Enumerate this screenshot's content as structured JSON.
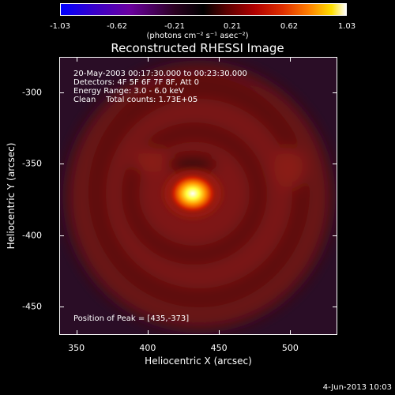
{
  "colorbar": {
    "ticks": [
      "-1.03",
      "-0.62",
      "-0.21",
      "0.21",
      "0.62",
      "1.03"
    ],
    "unit": "(photons cm⁻² s⁻¹ asec⁻²)"
  },
  "chart_data": {
    "type": "heatmap",
    "title": "Reconstructed RHESSI Image",
    "xlabel": "Heliocentric X (arcsec)",
    "ylabel": "Heliocentric Y (arcsec)",
    "xlim": [
      338,
      533
    ],
    "ylim": [
      -470,
      -275
    ],
    "xticks": [
      350,
      400,
      450,
      500
    ],
    "yticks": [
      -300,
      -350,
      -400,
      -450
    ],
    "color_range": [
      -1.03,
      1.03
    ],
    "peak": [
      435,
      -373
    ]
  },
  "annotations": {
    "time": "20-May-2003 00:17:30.000 to 00:23:30.000",
    "detectors": "Detectors: 4F 5F 6F 7F 8F, Att 0",
    "energy": "Energy Range: 3.0 - 6.0 keV",
    "clean": "Clean    Total counts: 1.73E+05",
    "peak_text": "Position of Peak = [435,-373]"
  },
  "footer": "4-Jun-2013 10:03"
}
